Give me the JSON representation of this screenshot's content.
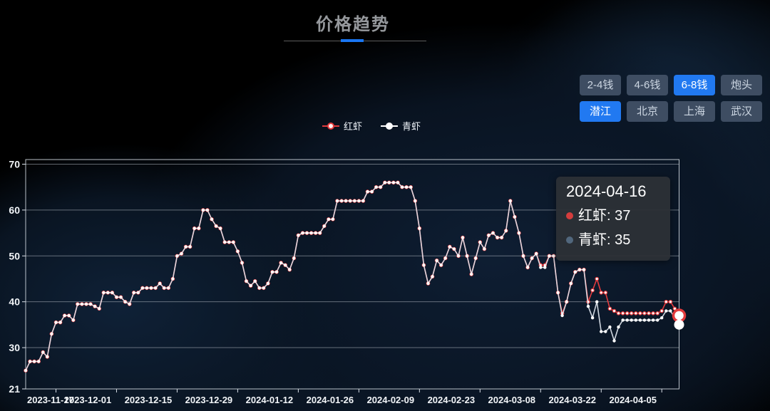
{
  "title": {
    "text": "价格趋势"
  },
  "filters": {
    "size_options": [
      {
        "label": "2-4钱",
        "active": false
      },
      {
        "label": "4-6钱",
        "active": false
      },
      {
        "label": "6-8钱",
        "active": true
      },
      {
        "label": "炮头",
        "active": false
      }
    ],
    "city_options": [
      {
        "label": "潜江",
        "active": true
      },
      {
        "label": "北京",
        "active": false
      },
      {
        "label": "上海",
        "active": false
      },
      {
        "label": "武汉",
        "active": false
      }
    ]
  },
  "colors": {
    "accent_blue": "#2179f1",
    "red_series": "#e23a3c",
    "white_series": "#e3eaf2",
    "tooltip_red_dot": "#d43d3d",
    "tooltip_slate_dot": "#51677d",
    "axis_line": "#d9e0e8",
    "grid_line": "#aeb6bf",
    "axis_text": "#f2f5f8"
  },
  "tooltip": {
    "date": "2024-04-16",
    "rows": [
      {
        "name": "红虾",
        "value": "37",
        "dot_color": "#d43d3d"
      },
      {
        "name": "青虾",
        "value": "35",
        "dot_color": "#51677d"
      }
    ]
  },
  "chart_data": {
    "type": "line",
    "title": "价格趋势",
    "start_date": "2023-11-17",
    "end_date": "2024-04-16",
    "x_tick_labels": [
      "2023-11-17",
      "2023-12-01",
      "2023-12-15",
      "2023-12-29",
      "2024-01-12",
      "2024-01-26",
      "2024-02-09",
      "2024-02-23",
      "2024-03-08",
      "2024-03-22",
      "2024-04-05"
    ],
    "x_tick_interval_days": 14,
    "ylim": [
      21,
      70
    ],
    "y_ticks": [
      21,
      30,
      40,
      50,
      60,
      70
    ],
    "legend": [
      "红虾",
      "青虾"
    ],
    "legend_position": "top-center",
    "grid": true,
    "series": [
      {
        "name": "红虾",
        "color": "#e23a3c",
        "end_emphasis_value": 37,
        "values": [
          25,
          27,
          27,
          27,
          29,
          28,
          33,
          35.5,
          35.5,
          37,
          37,
          36,
          39.5,
          39.5,
          39.5,
          39.5,
          39,
          38.5,
          42,
          42,
          42,
          41,
          41,
          40,
          39.5,
          42,
          42,
          43,
          43,
          43,
          43,
          44,
          43,
          43,
          45,
          50,
          50.5,
          52,
          52,
          56,
          56,
          60,
          60,
          58,
          56.5,
          56,
          53,
          53,
          53,
          51,
          48.5,
          44.5,
          43.5,
          44.5,
          43,
          43,
          44,
          46.5,
          46.5,
          48.5,
          48,
          47,
          49.5,
          54.5,
          55,
          55,
          55,
          55,
          55,
          56.5,
          58,
          58,
          62,
          62,
          62,
          62,
          62,
          62,
          62,
          64,
          64,
          65,
          65,
          66,
          66,
          66,
          66,
          65,
          65,
          65,
          62,
          56,
          48,
          44,
          45.5,
          49,
          48,
          49.5,
          52,
          51.5,
          50,
          54,
          50,
          46,
          49.5,
          53,
          51.5,
          54.5,
          55,
          54,
          54,
          55.5,
          62,
          58.5,
          55,
          50,
          47.5,
          49.5,
          50.5,
          48,
          48,
          50,
          50,
          42,
          37.5,
          40,
          44,
          46.5,
          47,
          47,
          40,
          42.5,
          45,
          42,
          42,
          38.5,
          38,
          37.5,
          37.5,
          37.5,
          37.5,
          37.5,
          37.5,
          37.5,
          37.5,
          37.5,
          37.5,
          38,
          40,
          40,
          38.5,
          37
        ]
      },
      {
        "name": "青虾",
        "color": "#e3eaf2",
        "end_emphasis_value": 35,
        "values": [
          25,
          27,
          27,
          27,
          29,
          28,
          33,
          35.5,
          35.5,
          37,
          37,
          36,
          39.5,
          39.5,
          39.5,
          39.5,
          39,
          38.5,
          42,
          42,
          42,
          41,
          41,
          40,
          39.5,
          42,
          42,
          43,
          43,
          43,
          43,
          44,
          43,
          43,
          45,
          50,
          50.5,
          52,
          52,
          56,
          56,
          60,
          60,
          58,
          56.5,
          56,
          53,
          53,
          53,
          51,
          48.5,
          44.5,
          43.5,
          44.5,
          43,
          43,
          44,
          46.5,
          46.5,
          48.5,
          48,
          47,
          49.5,
          54.5,
          55,
          55,
          55,
          55,
          55,
          56.5,
          58,
          58,
          62,
          62,
          62,
          62,
          62,
          62,
          62,
          64,
          64,
          65,
          65,
          66,
          66,
          66,
          66,
          65,
          65,
          65,
          62,
          56,
          48,
          44,
          45.5,
          49,
          48,
          49.5,
          52,
          51.5,
          50,
          54,
          50,
          46,
          49.5,
          53,
          51.5,
          54.5,
          55,
          54,
          54,
          55.5,
          62,
          58.5,
          55,
          50,
          47.5,
          49.5,
          50.5,
          47.5,
          47.5,
          50,
          50,
          42,
          37,
          40,
          44,
          46.5,
          47,
          47,
          39,
          36.5,
          40,
          33.5,
          33.5,
          34.5,
          31.5,
          34.5,
          36,
          36,
          36,
          36,
          36,
          36,
          36,
          36,
          36,
          36.5,
          38,
          38,
          36.5,
          35
        ]
      }
    ]
  }
}
